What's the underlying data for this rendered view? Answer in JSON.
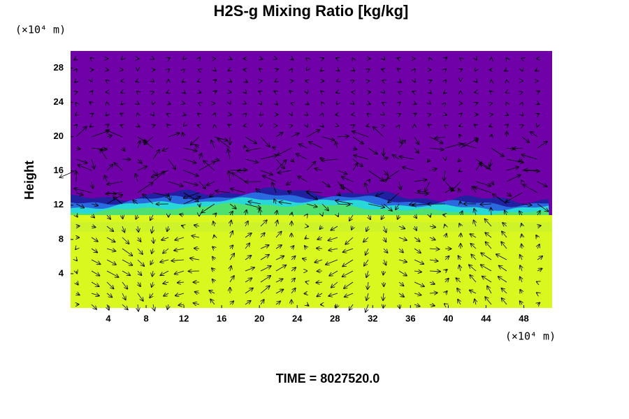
{
  "chart_data": {
    "type": "heatmap",
    "title": "H2S-g Mixing Ratio [kg/kg]",
    "x_unit_label": "(×10⁴ m)",
    "y_unit_label": "(×10⁴ m)",
    "y_label": "Height",
    "footer": "TIME = 8027520.0",
    "xlim": [
      0,
      51
    ],
    "xticks": [
      4,
      8,
      12,
      16,
      20,
      24,
      28,
      32,
      36,
      40,
      44,
      48
    ],
    "ylim": [
      0,
      30
    ],
    "yticks": [
      4,
      8,
      12,
      16,
      20,
      24,
      28
    ]
  }
}
